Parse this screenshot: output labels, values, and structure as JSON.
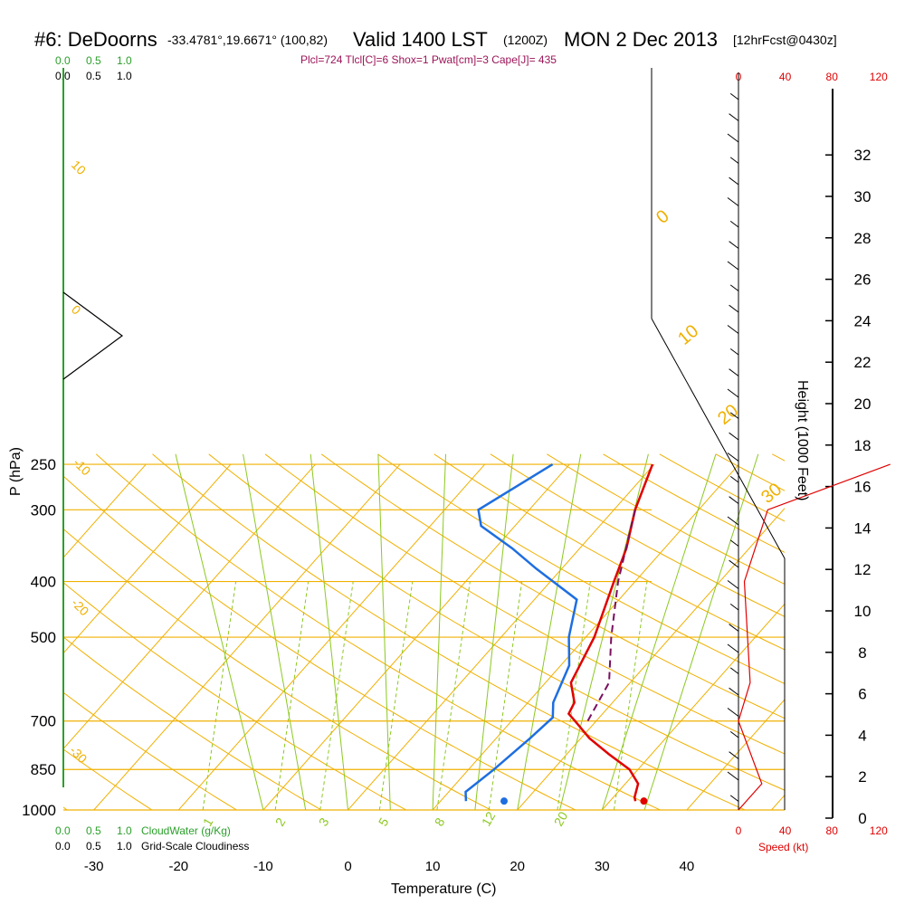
{
  "header": {
    "station": "#6: DeDoorns",
    "coords": "-33.4781°,19.6671° (100,82)",
    "valid": "Valid 1400 LST",
    "zulu": "(1200Z)",
    "date": "MON 2 Dec 2013",
    "forecast": "[12hrFcst@0430z]",
    "indices": "Plcl=724 Tlcl[C]=6 Shox=1 Pwat[cm]=3 Cape[J]= 435"
  },
  "colors": {
    "isotherm": "#f0b000",
    "dry_adiabat": "#f0b000",
    "moist_adiabat": "#8cc820",
    "mixing_ratio": "#8cc820",
    "temperature": "#e00000",
    "dewpoint": "#1e6ee0",
    "parcel": "#7a1060",
    "cloudwater": "#22b022",
    "wind_speed": "#e00000",
    "barbs": "#000000"
  },
  "chart_data": {
    "type": "line",
    "title": "",
    "xlabel": "Temperature (C)",
    "ylabel": "P (hPa)",
    "y2label": "Height (1000 Feet)",
    "xlim": [
      -34,
      46
    ],
    "ylim": [
      1000,
      250
    ],
    "y_scale": "log",
    "x_ticks": [
      -30,
      -20,
      -10,
      0,
      10,
      20,
      30,
      40
    ],
    "p_ticks": [
      250,
      300,
      400,
      500,
      700,
      850,
      1000
    ],
    "height_ticks": [
      0,
      2,
      4,
      6,
      8,
      10,
      12,
      14,
      16,
      18,
      20,
      22,
      24,
      26,
      28,
      30,
      32
    ],
    "isotherm_labels": [
      "10",
      "0",
      "-10",
      "-20",
      "-30",
      "0",
      "10",
      "20",
      "30"
    ],
    "mixing_ratio_labels": [
      "1",
      "2",
      "3",
      "5",
      "8",
      "12",
      "20"
    ],
    "series": [
      {
        "name": "Temperature",
        "points": [
          [
            -0.2,
            250
          ],
          [
            2.5,
            300
          ],
          [
            5.5,
            350
          ],
          [
            7.5,
            400
          ],
          [
            11,
            500
          ],
          [
            13,
            600
          ],
          [
            15.5,
            650
          ],
          [
            16,
            680
          ],
          [
            17.5,
            700
          ],
          [
            21,
            750
          ],
          [
            25,
            800
          ],
          [
            29,
            850
          ],
          [
            31.5,
            900
          ],
          [
            32.5,
            950
          ],
          [
            33,
            965
          ]
        ]
      },
      {
        "name": "Dewpoint",
        "points": [
          [
            -12,
            250
          ],
          [
            -16,
            300
          ],
          [
            -14,
            320
          ],
          [
            -8,
            350
          ],
          [
            -3,
            380
          ],
          [
            5,
            430
          ],
          [
            8,
            500
          ],
          [
            11,
            560
          ],
          [
            13,
            650
          ],
          [
            14.5,
            690
          ],
          [
            14,
            750
          ],
          [
            13,
            850
          ],
          [
            12,
            930
          ],
          [
            13,
            965
          ]
        ]
      },
      {
        "name": "Parcel",
        "points": [
          [
            2.5,
            300
          ],
          [
            8,
            400
          ],
          [
            13,
            500
          ],
          [
            17.5,
            600
          ],
          [
            19,
            700
          ]
        ]
      },
      {
        "name": "Wind speed",
        "points": [
          [
            0,
            1000
          ],
          [
            20,
            900
          ],
          [
            0,
            700
          ],
          [
            10,
            600
          ],
          [
            5,
            400
          ],
          [
            25,
            300
          ],
          [
            130,
            250
          ]
        ]
      }
    ],
    "surface_temperature": 34,
    "surface_dewpoint": 17.5,
    "cloud_scale": [
      "0.0",
      "0.5",
      "1.0"
    ],
    "cloudwater_label": "CloudWater (g/Kg)",
    "cloudiness_label": "Grid-Scale Cloudiness",
    "speed_axis": {
      "ticks": [
        "0",
        "40",
        "80",
        "120"
      ],
      "label": "Speed (kt)"
    }
  }
}
